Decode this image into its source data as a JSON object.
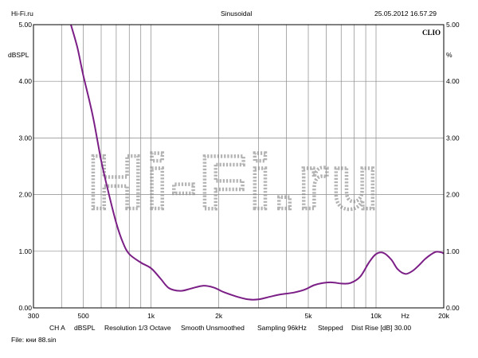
{
  "header": {
    "site": "Hi-Fi.ru",
    "mode": "Sinusoidal",
    "datetime": "25.05.2012 16.57.29"
  },
  "chart_data": {
    "type": "line",
    "x_scale": "log",
    "xlim": [
      300,
      20000
    ],
    "ylim": [
      0,
      5
    ],
    "ylabel_left": "dBSPL",
    "ylabel_right": "%",
    "brand": "CLIO",
    "watermark": "Hi-Fi.ru",
    "y_ticks": [
      "0.00",
      "1.00",
      "2.00",
      "3.00",
      "4.00",
      "5.00"
    ],
    "x_ticks": [
      {
        "value": 300,
        "label": "300"
      },
      {
        "value": 500,
        "label": "500"
      },
      {
        "value": 1000,
        "label": "1k"
      },
      {
        "value": 2000,
        "label": "2k"
      },
      {
        "value": 5000,
        "label": "5k"
      },
      {
        "value": 10000,
        "label": "10k"
      },
      {
        "value": 13500,
        "label": "Hz"
      },
      {
        "value": 20000,
        "label": "20k"
      }
    ],
    "x_gridlines": [
      400,
      500,
      600,
      700,
      800,
      900,
      1000,
      2000,
      3000,
      4000,
      5000,
      6000,
      7000,
      8000,
      9000,
      10000,
      20000
    ],
    "line_color": "#7b1f86",
    "series": [
      {
        "x": [
          440,
          470,
          500,
          550,
          600,
          650,
          700,
          750,
          800,
          900,
          1000,
          1100,
          1200,
          1350,
          1500,
          1700,
          1900,
          2100,
          2400,
          2700,
          3000,
          3400,
          3800,
          4300,
          4800,
          5300,
          5800,
          6400,
          7000,
          7700,
          8500,
          9300,
          10000,
          10800,
          11700,
          12500,
          13500,
          14500,
          15500,
          16500,
          17500,
          18500,
          19500,
          20000
        ],
        "y": [
          5.0,
          4.6,
          4.1,
          3.4,
          2.6,
          2.0,
          1.5,
          1.15,
          0.95,
          0.8,
          0.7,
          0.52,
          0.35,
          0.3,
          0.34,
          0.39,
          0.36,
          0.28,
          0.2,
          0.15,
          0.15,
          0.2,
          0.24,
          0.27,
          0.32,
          0.4,
          0.44,
          0.45,
          0.43,
          0.44,
          0.55,
          0.8,
          0.95,
          0.97,
          0.85,
          0.68,
          0.6,
          0.65,
          0.75,
          0.86,
          0.94,
          0.99,
          0.98,
          0.96
        ]
      }
    ]
  },
  "footer": {
    "params": [
      {
        "label": "CH A"
      },
      {
        "label": "dBSPL"
      },
      {
        "label": "Resolution 1/3 Octave"
      },
      {
        "label": "Smooth Unsmoothed"
      },
      {
        "label": "Sampling 96kHz"
      },
      {
        "label": "Stepped"
      },
      {
        "label": "Dist Rise [dB] 30.00"
      }
    ],
    "file": "File: кни 88.sin"
  }
}
